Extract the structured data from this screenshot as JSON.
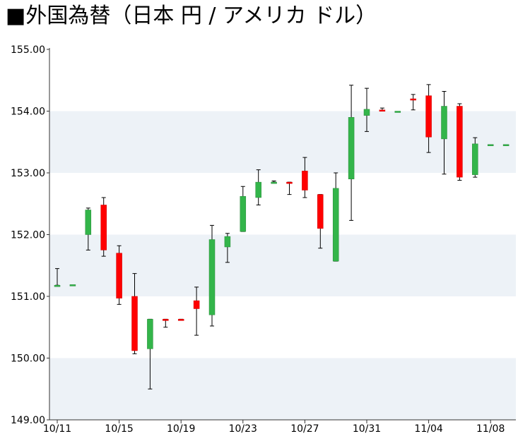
{
  "title": "■外国為替（日本 円 / アメリカ ドル）",
  "chart_data": {
    "type": "candlestick",
    "ylim": [
      149.0,
      155.0
    ],
    "y_ticks": [
      "149.00",
      "150.00",
      "151.00",
      "152.00",
      "153.00",
      "154.00",
      "155.00"
    ],
    "x_ticks": [
      "10/11",
      "10/15",
      "10/19",
      "10/23",
      "10/27",
      "10/31",
      "11/04",
      "11/08"
    ],
    "grid": "alternating horizontal bands",
    "colors": {
      "up": "#33b54a",
      "down": "#ff0000",
      "band": "#edf2f7"
    },
    "candles": [
      {
        "open": 151.18,
        "high": 151.45,
        "low": 151.18,
        "close": 151.18
      },
      {
        "open": 151.18,
        "high": 151.18,
        "low": 151.18,
        "close": 151.19
      },
      {
        "open": 152.0,
        "high": 152.43,
        "low": 151.75,
        "close": 152.4
      },
      {
        "open": 152.48,
        "high": 152.6,
        "low": 151.65,
        "close": 151.75
      },
      {
        "open": 151.7,
        "high": 151.82,
        "low": 150.87,
        "close": 150.97
      },
      {
        "open": 151.0,
        "high": 151.37,
        "low": 150.07,
        "close": 150.12
      },
      {
        "open": 150.15,
        "high": 150.63,
        "low": 149.5,
        "close": 150.63
      },
      {
        "open": 150.63,
        "high": 150.63,
        "low": 150.5,
        "close": 150.62
      },
      {
        "open": 150.63,
        "high": 150.63,
        "low": 150.62,
        "close": 150.62
      },
      {
        "open": 150.93,
        "high": 151.15,
        "low": 150.37,
        "close": 150.8
      },
      {
        "open": 150.7,
        "high": 152.15,
        "low": 150.52,
        "close": 151.92
      },
      {
        "open": 151.8,
        "high": 152.02,
        "low": 151.55,
        "close": 151.97
      },
      {
        "open": 152.05,
        "high": 152.78,
        "low": 152.05,
        "close": 152.62
      },
      {
        "open": 152.6,
        "high": 153.05,
        "low": 152.48,
        "close": 152.85
      },
      {
        "open": 152.85,
        "high": 152.87,
        "low": 152.85,
        "close": 152.85
      },
      {
        "open": 152.85,
        "high": 152.85,
        "low": 152.65,
        "close": 152.84
      },
      {
        "open": 153.03,
        "high": 153.25,
        "low": 152.6,
        "close": 152.72
      },
      {
        "open": 152.65,
        "high": 152.65,
        "low": 151.78,
        "close": 152.1
      },
      {
        "open": 151.57,
        "high": 153.0,
        "low": 151.57,
        "close": 152.75
      },
      {
        "open": 152.9,
        "high": 154.42,
        "low": 152.23,
        "close": 153.9
      },
      {
        "open": 153.93,
        "high": 154.37,
        "low": 153.67,
        "close": 154.03
      },
      {
        "open": 154.02,
        "high": 154.05,
        "low": 154.0,
        "close": 154.0
      },
      {
        "open": 154.0,
        "high": 154.0,
        "low": 154.0,
        "close": 154.0
      },
      {
        "open": 154.2,
        "high": 154.27,
        "low": 154.02,
        "close": 154.19
      },
      {
        "open": 154.25,
        "high": 154.43,
        "low": 153.33,
        "close": 153.58
      },
      {
        "open": 153.55,
        "high": 154.32,
        "low": 152.98,
        "close": 154.08
      },
      {
        "open": 154.08,
        "high": 154.12,
        "low": 152.88,
        "close": 152.93
      },
      {
        "open": 152.97,
        "high": 153.57,
        "low": 152.93,
        "close": 153.47
      },
      {
        "open": 153.46,
        "high": 153.46,
        "low": 153.46,
        "close": 153.46
      },
      {
        "open": 153.46,
        "high": 153.46,
        "low": 153.46,
        "close": 153.46
      }
    ]
  }
}
